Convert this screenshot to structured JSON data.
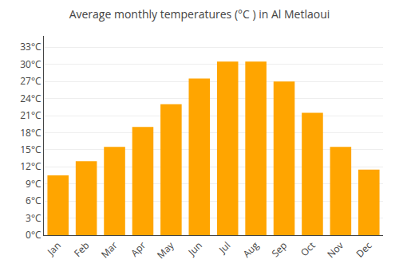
{
  "chart_data": {
    "type": "bar",
    "title": "Average monthly temperatures (°C ) in Al Metlaoui",
    "categories": [
      "Jan",
      "Feb",
      "Mar",
      "Apr",
      "May",
      "Jun",
      "Jul",
      "Aug",
      "Sep",
      "Oct",
      "Nov",
      "Dec"
    ],
    "values": [
      10.5,
      13.0,
      15.5,
      19.0,
      23.0,
      27.5,
      30.5,
      30.5,
      27.0,
      21.5,
      15.5,
      11.5
    ],
    "color": "#FFA500",
    "ylim": [
      0,
      35
    ],
    "yticks": [
      {
        "value": 0,
        "label": "0°C"
      },
      {
        "value": 3,
        "label": "3°C"
      },
      {
        "value": 6,
        "label": "6°C"
      },
      {
        "value": 9,
        "label": "9°C"
      },
      {
        "value": 12,
        "label": "12°C"
      },
      {
        "value": 15,
        "label": "15°C"
      },
      {
        "value": 18,
        "label": "18°C"
      },
      {
        "value": 21,
        "label": "21°C"
      },
      {
        "value": 24,
        "label": "24°C"
      },
      {
        "value": 27,
        "label": "27°C"
      },
      {
        "value": 30,
        "label": "30°C"
      },
      {
        "value": 33,
        "label": "33°C"
      }
    ],
    "grid": true
  }
}
